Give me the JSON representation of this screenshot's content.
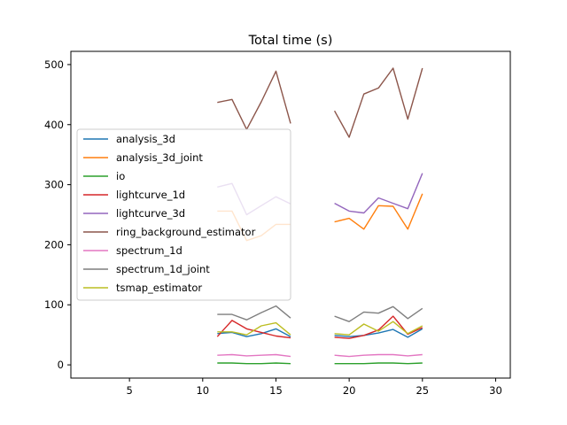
{
  "chart_data": {
    "type": "line",
    "title": "Total time (s)",
    "xlabel": "",
    "ylabel": "",
    "xlim": [
      1.0,
      31.0
    ],
    "ylim": [
      -22,
      522
    ],
    "xticks": [
      5,
      10,
      15,
      20,
      25,
      30
    ],
    "yticks": [
      0,
      100,
      200,
      300,
      400,
      500
    ],
    "grid": false,
    "legend_position": "center-left",
    "series": [
      {
        "name": "analysis_3d",
        "color": "#1f77b4",
        "segments": [
          {
            "x": [
              11,
              12,
              13,
              14,
              15,
              16
            ],
            "y": [
              52,
              54,
              47,
              52,
              60,
              47
            ]
          },
          {
            "x": [
              19,
              20,
              21,
              22,
              23,
              24,
              25
            ],
            "y": [
              49,
              47,
              49,
              53,
              59,
              46,
              60
            ]
          }
        ]
      },
      {
        "name": "analysis_3d_joint",
        "color": "#ff7f0e",
        "segments": [
          {
            "x": [
              11,
              12,
              13,
              14,
              15,
              16
            ],
            "y": [
              256,
              256,
              207,
              215,
              234,
              234
            ]
          },
          {
            "x": [
              19,
              20,
              21,
              22,
              23,
              24,
              25
            ],
            "y": [
              238,
              244,
              226,
              265,
              264,
              226,
              285
            ]
          }
        ]
      },
      {
        "name": "io",
        "color": "#2ca02c",
        "segments": [
          {
            "x": [
              11,
              12,
              13,
              14,
              15,
              16
            ],
            "y": [
              3,
              3,
              2,
              2,
              3,
              2
            ]
          },
          {
            "x": [
              19,
              20,
              21,
              22,
              23,
              24,
              25
            ],
            "y": [
              2,
              2,
              2,
              3,
              3,
              2,
              3
            ]
          }
        ]
      },
      {
        "name": "lightcurve_1d",
        "color": "#d62728",
        "segments": [
          {
            "x": [
              11,
              12,
              13,
              14,
              15,
              16
            ],
            "y": [
              47,
              74,
              60,
              54,
              48,
              45
            ]
          },
          {
            "x": [
              19,
              20,
              21,
              22,
              23,
              24,
              25
            ],
            "y": [
              46,
              44,
              49,
              58,
              81,
              51,
              62
            ]
          }
        ]
      },
      {
        "name": "lightcurve_3d",
        "color": "#9467bd",
        "segments": [
          {
            "x": [
              11,
              12,
              13,
              14,
              15,
              16
            ],
            "y": [
              296,
              302,
              250,
              265,
              280,
              268
            ]
          },
          {
            "x": [
              19,
              20,
              21,
              22,
              23,
              24,
              25
            ],
            "y": [
              269,
              256,
              253,
              278,
              269,
              260,
              319
            ]
          }
        ]
      },
      {
        "name": "ring_background_estimator",
        "color": "#8c564b",
        "segments": [
          {
            "x": [
              11,
              12,
              13,
              14,
              15,
              16
            ],
            "y": [
              437,
              442,
              392,
              438,
              489,
              402
            ]
          },
          {
            "x": [
              19,
              20,
              21,
              22,
              23,
              24,
              25
            ],
            "y": [
              423,
              379,
              451,
              461,
              494,
              409,
              494
            ]
          }
        ]
      },
      {
        "name": "spectrum_1d",
        "color": "#e377c2",
        "segments": [
          {
            "x": [
              11,
              12,
              13,
              14,
              15,
              16
            ],
            "y": [
              16,
              17,
              15,
              16,
              17,
              14
            ]
          },
          {
            "x": [
              19,
              20,
              21,
              22,
              23,
              24,
              25
            ],
            "y": [
              16,
              14,
              16,
              17,
              17,
              15,
              17
            ]
          }
        ]
      },
      {
        "name": "spectrum_1d_joint",
        "color": "#7f7f7f",
        "segments": [
          {
            "x": [
              11,
              12,
              13,
              14,
              15,
              16
            ],
            "y": [
              84,
              84,
              75,
              87,
              98,
              78
            ]
          },
          {
            "x": [
              19,
              20,
              21,
              22,
              23,
              24,
              25
            ],
            "y": [
              81,
              72,
              88,
              86,
              97,
              77,
              94
            ]
          }
        ]
      },
      {
        "name": "tsmap_estimator",
        "color": "#bcbd22",
        "segments": [
          {
            "x": [
              11,
              12,
              13,
              14,
              15,
              16
            ],
            "y": [
              55,
              55,
              50,
              65,
              70,
              50
            ]
          },
          {
            "x": [
              19,
              20,
              21,
              22,
              23,
              24,
              25
            ],
            "y": [
              52,
              50,
              68,
              56,
              72,
              52,
              65
            ]
          }
        ]
      }
    ]
  }
}
